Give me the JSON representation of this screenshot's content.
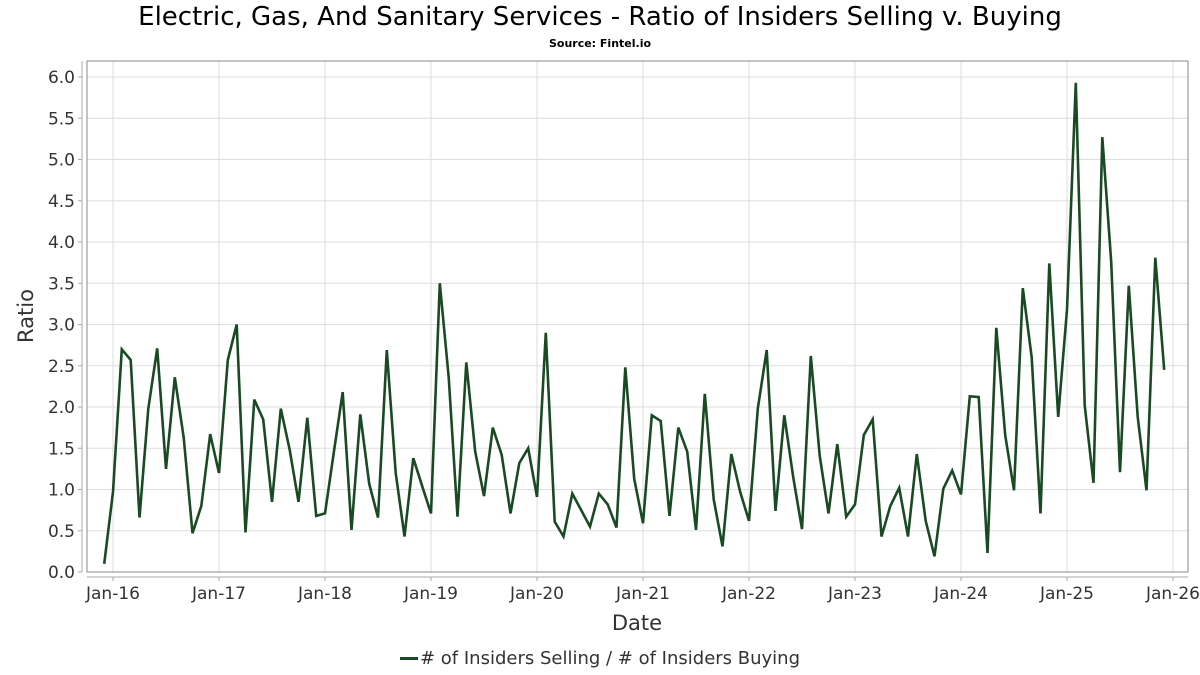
{
  "chart_data": {
    "type": "line",
    "title": "Electric, Gas, And Sanitary Services  - Ratio of Insiders Selling v. Buying",
    "subtitle": "Source: Fintel.io",
    "xlabel": "Date",
    "ylabel": "Ratio",
    "ylim": [
      0,
      6.0
    ],
    "yticks": [
      "0.0",
      "0.5",
      "1.0",
      "1.5",
      "2.0",
      "2.5",
      "3.0",
      "3.5",
      "4.0",
      "4.5",
      "5.0",
      "5.5",
      "6.0"
    ],
    "xticks": [
      "Jan-16",
      "Jan-17",
      "Jan-18",
      "Jan-19",
      "Jan-20",
      "Jan-21",
      "Jan-22",
      "Jan-23",
      "Jan-24",
      "Jan-25",
      "Jan-26"
    ],
    "x_start": "Dec-15",
    "x_frequency": "monthly",
    "grid": true,
    "legend_position": "bottom-center",
    "line_color": "#1a4a24",
    "series": [
      {
        "name": "# of Insiders Selling / # of Insiders Buying",
        "values": [
          0.1,
          0.97,
          2.7,
          2.57,
          0.66,
          1.98,
          2.71,
          1.25,
          2.36,
          1.63,
          0.47,
          0.8,
          1.67,
          1.2,
          2.57,
          3.0,
          0.48,
          2.09,
          1.85,
          0.85,
          1.98,
          1.48,
          0.85,
          1.87,
          0.68,
          0.71,
          1.45,
          2.18,
          0.51,
          1.91,
          1.07,
          0.66,
          2.69,
          1.2,
          0.43,
          1.38,
          1.04,
          0.71,
          3.5,
          2.36,
          0.67,
          2.54,
          1.46,
          0.92,
          1.75,
          1.42,
          0.71,
          1.32,
          1.5,
          0.91,
          2.9,
          0.61,
          0.43,
          0.95,
          0.75,
          0.55,
          0.95,
          0.82,
          0.54,
          2.48,
          1.13,
          0.59,
          1.9,
          1.83,
          0.68,
          1.75,
          1.46,
          0.51,
          2.16,
          0.88,
          0.31,
          1.43,
          0.97,
          0.62,
          1.98,
          2.69,
          0.74,
          1.9,
          1.15,
          0.52,
          2.62,
          1.41,
          0.71,
          1.55,
          0.67,
          0.82,
          1.66,
          1.85,
          0.43,
          0.8,
          1.02,
          0.43,
          1.43,
          0.62,
          0.19,
          1.01,
          1.23,
          0.94,
          2.13,
          2.12,
          0.23,
          2.96,
          1.66,
          0.99,
          3.44,
          2.6,
          0.71,
          3.74,
          1.88,
          3.18,
          5.93,
          2.02,
          1.08,
          5.27,
          3.76,
          1.21,
          3.47,
          1.88,
          0.99,
          3.81,
          2.45
        ]
      }
    ]
  }
}
